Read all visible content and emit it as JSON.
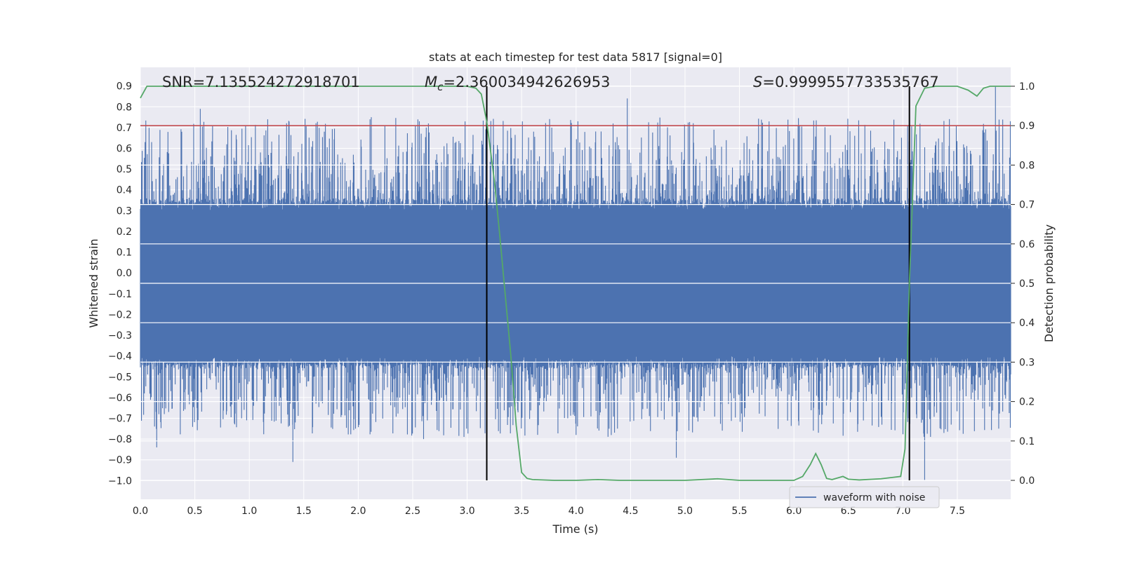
{
  "chart_data": {
    "type": "line",
    "title": "stats at each timestep for test data 5817 [signal=0]",
    "xlabel": "Time (s)",
    "ylabel": "Whitened strain",
    "y2label": "Detection probability",
    "xlim": [
      0.0,
      7.99
    ],
    "ylim": [
      -1.09,
      0.99
    ],
    "y2lim": [
      -0.048,
      1.048
    ],
    "x_ticks": [
      0.0,
      0.5,
      1.0,
      1.5,
      2.0,
      2.5,
      3.0,
      3.5,
      4.0,
      4.5,
      5.0,
      5.5,
      6.0,
      6.5,
      7.0,
      7.5
    ],
    "x_tick_labels": [
      "0.0",
      "0.5",
      "1.0",
      "1.5",
      "2.0",
      "2.5",
      "3.0",
      "3.5",
      "4.0",
      "4.5",
      "5.0",
      "5.5",
      "6.0",
      "6.5",
      "7.0",
      "7.5"
    ],
    "y_ticks": [
      0.9,
      0.8,
      0.7,
      0.6,
      0.5,
      0.4,
      0.3,
      0.2,
      0.1,
      0.0,
      -0.1,
      -0.2,
      -0.3,
      -0.4,
      -0.5,
      -0.6,
      -0.7,
      -0.8,
      -0.9,
      -1.0
    ],
    "y_tick_labels": [
      "0.9",
      "0.8",
      "0.7",
      "0.6",
      "0.5",
      "0.4",
      "0.3",
      "0.2",
      "0.1",
      "0.0",
      "−0.1",
      "−0.2",
      "−0.3",
      "−0.4",
      "−0.5",
      "−0.6",
      "−0.7",
      "−0.8",
      "−0.9",
      "−1.0"
    ],
    "y2_ticks": [
      1.0,
      0.9,
      0.8,
      0.7,
      0.6,
      0.5,
      0.4,
      0.3,
      0.2,
      0.1,
      0.0
    ],
    "y2_tick_labels": [
      "1.0",
      "0.9",
      "0.8",
      "0.7",
      "0.6",
      "0.5",
      "0.4",
      "0.3",
      "0.2",
      "0.1",
      "0.0"
    ],
    "grid": true,
    "annotations": {
      "snr": "SNR=7.135524272918701",
      "mc_symbol": "M",
      "mc_sub": "c",
      "mc_value": "=2.360034942626953",
      "s_symbol": "S",
      "s_value": "=0.9999557733535767"
    },
    "threshold": {
      "y2": 0.9,
      "color": "#c44e52"
    },
    "vlines": [
      3.18,
      7.06
    ],
    "legend": {
      "label": "waveform with noise",
      "position": "bottom-right"
    },
    "series": [
      {
        "name": "waveform with noise",
        "axis": "left",
        "color": "#4c72b0",
        "note": "dense noisy waveform (~8000 samples); rendered procedurally with seeded noise, peak extremes listed",
        "envelope_core": [
          -0.43,
          0.33
        ],
        "peaks": [
          {
            "x": 0.15,
            "y": -0.84
          },
          {
            "x": 0.55,
            "y": 0.79
          },
          {
            "x": 1.4,
            "y": -0.91
          },
          {
            "x": 2.12,
            "y": 0.75
          },
          {
            "x": 2.6,
            "y": -0.8
          },
          {
            "x": 4.47,
            "y": 0.84
          },
          {
            "x": 4.38,
            "y": -0.75
          },
          {
            "x": 4.92,
            "y": -0.89
          },
          {
            "x": 7.2,
            "y": -1.0
          },
          {
            "x": 7.85,
            "y": 0.9
          },
          {
            "x": 7.88,
            "y": -0.75
          }
        ]
      },
      {
        "name": "detection probability",
        "axis": "right",
        "color": "#55a868",
        "x": [
          0.0,
          0.06,
          0.2,
          0.5,
          1.0,
          1.5,
          2.0,
          2.5,
          2.8,
          3.0,
          3.08,
          3.13,
          3.18,
          3.25,
          3.3,
          3.35,
          3.4,
          3.45,
          3.5,
          3.55,
          3.6,
          3.8,
          4.0,
          4.2,
          4.4,
          4.6,
          4.8,
          5.0,
          5.3,
          5.5,
          6.0,
          6.08,
          6.15,
          6.2,
          6.25,
          6.3,
          6.35,
          6.4,
          6.45,
          6.5,
          6.6,
          6.8,
          6.98,
          7.02,
          7.06,
          7.12,
          7.2,
          7.3,
          7.5,
          7.6,
          7.68,
          7.74,
          7.8,
          7.9,
          7.99
        ],
        "y": [
          0.97,
          1.0,
          1.0,
          1.0,
          1.0,
          1.0,
          1.0,
          1.0,
          1.0,
          1.0,
          0.995,
          0.98,
          0.91,
          0.76,
          0.62,
          0.47,
          0.32,
          0.14,
          0.02,
          0.005,
          0.002,
          0.0,
          0.0,
          0.002,
          0.0,
          0.0,
          0.0,
          0.0,
          0.004,
          0.0,
          0.0,
          0.01,
          0.04,
          0.068,
          0.04,
          0.005,
          0.002,
          0.006,
          0.01,
          0.003,
          0.001,
          0.004,
          0.01,
          0.08,
          0.5,
          0.95,
          0.995,
          1.0,
          1.0,
          0.99,
          0.975,
          0.995,
          1.0,
          1.0,
          1.0
        ]
      }
    ]
  }
}
